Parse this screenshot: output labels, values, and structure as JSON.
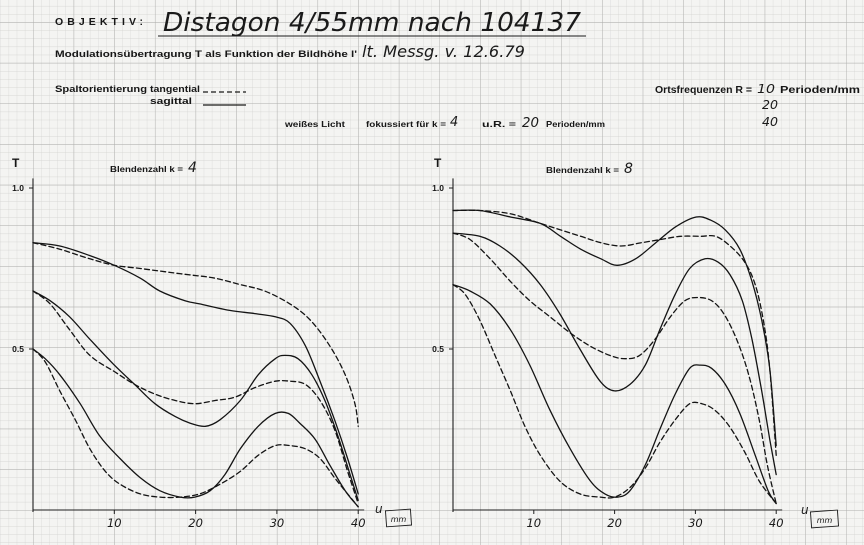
{
  "header": {
    "objektiv_label": "OBJEKTIV:",
    "lens": "Distagon 4/55mm nach 104137",
    "subtitle": "Modulationsübertragung T als Funktion der Bildhöhe l'",
    "measurement": "lt. Messg. v. 12.6.79"
  },
  "legend": {
    "prefix": "Spaltorientierung",
    "tangential": "tangential",
    "sagittal": "sagittal"
  },
  "frequencies": {
    "label": "Ortsfrequenzen R =",
    "values": [
      "10",
      "20",
      "40"
    ],
    "unit": "Perioden/mm"
  },
  "conditions": {
    "light": "weißes Licht",
    "focus_label": "fokussiert für k =",
    "focus_value": "4",
    "ur_label": "u.R. =",
    "ur_value": "20",
    "ur_unit": "Perioden/mm"
  },
  "chart_data": [
    {
      "type": "line",
      "title": "Blendenzahl k =",
      "aperture": "4",
      "ylabel": "T",
      "xlabel": "u",
      "xunit": "mm",
      "xlim": [
        0,
        40
      ],
      "ylim": [
        0,
        1
      ],
      "grid": true,
      "yticks": [
        {
          "value": 1.0,
          "label": "1.0"
        },
        {
          "value": 0.5,
          "label": "0.5"
        }
      ],
      "xticks": [
        {
          "value": 10,
          "label": "10"
        },
        {
          "value": 20,
          "label": "20"
        },
        {
          "value": 30,
          "label": "30"
        },
        {
          "value": 40,
          "label": "40"
        }
      ],
      "series": [
        {
          "tangential": true,
          "R": 10,
          "points": [
            [
              0,
              0.83
            ],
            [
              3.3,
              0.81
            ],
            [
              7,
              0.78
            ],
            [
              10,
              0.76
            ],
            [
              13.2,
              0.75
            ],
            [
              16.2,
              0.74
            ],
            [
              19.3,
              0.73
            ],
            [
              22.4,
              0.72
            ],
            [
              25.5,
              0.7
            ],
            [
              28.5,
              0.68
            ],
            [
              31.6,
              0.64
            ],
            [
              34.1,
              0.59
            ],
            [
              36.5,
              0.51
            ],
            [
              38.4,
              0.42
            ],
            [
              39.6,
              0.33
            ],
            [
              40,
              0.26
            ]
          ]
        },
        {
          "tangential": false,
          "R": 10,
          "points": [
            [
              0,
              0.83
            ],
            [
              3.3,
              0.82
            ],
            [
              7,
              0.79
            ],
            [
              10,
              0.76
            ],
            [
              13.2,
              0.72
            ],
            [
              15.6,
              0.68
            ],
            [
              18.7,
              0.65
            ],
            [
              20.5,
              0.64
            ],
            [
              24.2,
              0.62
            ],
            [
              27.3,
              0.61
            ],
            [
              29.8,
              0.6
            ],
            [
              31.6,
              0.58
            ],
            [
              33.5,
              0.51
            ],
            [
              35.3,
              0.4
            ],
            [
              37.1,
              0.28
            ],
            [
              38.7,
              0.16
            ],
            [
              40,
              0.05
            ]
          ]
        },
        {
          "tangential": true,
          "R": 20,
          "points": [
            [
              0,
              0.68
            ],
            [
              2.1,
              0.64
            ],
            [
              4.5,
              0.56
            ],
            [
              7,
              0.48
            ],
            [
              10,
              0.43
            ],
            [
              12.5,
              0.39
            ],
            [
              15,
              0.36
            ],
            [
              17.5,
              0.34
            ],
            [
              19.9,
              0.33
            ],
            [
              22.4,
              0.34
            ],
            [
              24.8,
              0.35
            ],
            [
              27.3,
              0.38
            ],
            [
              29.8,
              0.4
            ],
            [
              31.6,
              0.4
            ],
            [
              33.5,
              0.39
            ],
            [
              35.3,
              0.34
            ],
            [
              37.1,
              0.25
            ],
            [
              38.7,
              0.12
            ],
            [
              40,
              0.02
            ]
          ]
        },
        {
          "tangential": false,
          "R": 20,
          "points": [
            [
              0,
              0.68
            ],
            [
              2.1,
              0.65
            ],
            [
              4.5,
              0.6
            ],
            [
              7,
              0.53
            ],
            [
              10,
              0.45
            ],
            [
              12.5,
              0.39
            ],
            [
              15,
              0.33
            ],
            [
              17.5,
              0.29
            ],
            [
              19.3,
              0.27
            ],
            [
              21.2,
              0.26
            ],
            [
              23,
              0.28
            ],
            [
              25.5,
              0.34
            ],
            [
              27.7,
              0.42
            ],
            [
              29.8,
              0.47
            ],
            [
              31,
              0.48
            ],
            [
              32.6,
              0.47
            ],
            [
              34.3,
              0.42
            ],
            [
              35.9,
              0.34
            ],
            [
              37.5,
              0.23
            ],
            [
              39,
              0.11
            ],
            [
              40,
              0.03
            ]
          ]
        },
        {
          "tangential": true,
          "R": 40,
          "points": [
            [
              0,
              0.5
            ],
            [
              1.5,
              0.46
            ],
            [
              3.3,
              0.37
            ],
            [
              5.2,
              0.28
            ],
            [
              7,
              0.19
            ],
            [
              8.9,
              0.12
            ],
            [
              10.7,
              0.08
            ],
            [
              13.2,
              0.05
            ],
            [
              15.6,
              0.04
            ],
            [
              18.1,
              0.04
            ],
            [
              20.5,
              0.05
            ],
            [
              23,
              0.08
            ],
            [
              25.5,
              0.12
            ],
            [
              27.7,
              0.17
            ],
            [
              29.8,
              0.2
            ],
            [
              31.6,
              0.2
            ],
            [
              33.5,
              0.19
            ],
            [
              35.3,
              0.16
            ],
            [
              37.1,
              0.1
            ],
            [
              38.7,
              0.05
            ],
            [
              40,
              0.01
            ]
          ]
        },
        {
          "tangential": false,
          "R": 40,
          "points": [
            [
              0,
              0.5
            ],
            [
              1.5,
              0.47
            ],
            [
              3.3,
              0.42
            ],
            [
              5.8,
              0.33
            ],
            [
              8.2,
              0.23
            ],
            [
              10.7,
              0.16
            ],
            [
              13.2,
              0.1
            ],
            [
              15.6,
              0.06
            ],
            [
              18.1,
              0.04
            ],
            [
              19.9,
              0.04
            ],
            [
              21.8,
              0.06
            ],
            [
              23.6,
              0.11
            ],
            [
              25.5,
              0.19
            ],
            [
              27.7,
              0.26
            ],
            [
              29.8,
              0.3
            ],
            [
              31.4,
              0.3
            ],
            [
              32.8,
              0.27
            ],
            [
              34.7,
              0.22
            ],
            [
              36.5,
              0.14
            ],
            [
              38.4,
              0.06
            ],
            [
              40,
              0.01
            ]
          ]
        }
      ]
    },
    {
      "type": "line",
      "title": "Blendenzahl k =",
      "aperture": "8",
      "ylabel": "T",
      "xlabel": "u",
      "xunit": "mm",
      "xlim": [
        0,
        40
      ],
      "ylim": [
        0,
        1
      ],
      "grid": true,
      "yticks": [
        {
          "value": 1.0,
          "label": "1.0"
        },
        {
          "value": 0.5,
          "label": "0.5"
        }
      ],
      "xticks": [
        {
          "value": 10,
          "label": "10"
        },
        {
          "value": 20,
          "label": "20"
        },
        {
          "value": 30,
          "label": "30"
        },
        {
          "value": 40,
          "label": "40"
        }
      ],
      "series": [
        {
          "tangential": true,
          "R": 10,
          "points": [
            [
              0,
              0.93
            ],
            [
              3.3,
              0.93
            ],
            [
              7.1,
              0.92
            ],
            [
              10.8,
              0.89
            ],
            [
              13.3,
              0.87
            ],
            [
              15.8,
              0.85
            ],
            [
              18.3,
              0.83
            ],
            [
              20.8,
              0.82
            ],
            [
              23.3,
              0.83
            ],
            [
              25.7,
              0.84
            ],
            [
              28.2,
              0.85
            ],
            [
              30.7,
              0.85
            ],
            [
              32.5,
              0.85
            ],
            [
              34.3,
              0.82
            ],
            [
              36.1,
              0.77
            ],
            [
              37.4,
              0.7
            ],
            [
              38.4,
              0.59
            ],
            [
              39.2,
              0.44
            ],
            [
              40,
              0.17
            ]
          ]
        },
        {
          "tangential": false,
          "R": 10,
          "points": [
            [
              0,
              0.93
            ],
            [
              3.3,
              0.93
            ],
            [
              7.1,
              0.91
            ],
            [
              10.8,
              0.89
            ],
            [
              13.3,
              0.85
            ],
            [
              15.8,
              0.81
            ],
            [
              18.3,
              0.78
            ],
            [
              20.3,
              0.76
            ],
            [
              22.6,
              0.78
            ],
            [
              25.1,
              0.83
            ],
            [
              27.6,
              0.88
            ],
            [
              30.1,
              0.91
            ],
            [
              31.9,
              0.9
            ],
            [
              33.7,
              0.87
            ],
            [
              35.5,
              0.81
            ],
            [
              37,
              0.71
            ],
            [
              38.2,
              0.59
            ],
            [
              39.2,
              0.44
            ],
            [
              40,
              0.2
            ]
          ]
        },
        {
          "tangential": true,
          "R": 20,
          "points": [
            [
              0,
              0.86
            ],
            [
              2.1,
              0.84
            ],
            [
              4.6,
              0.78
            ],
            [
              7.1,
              0.71
            ],
            [
              9.5,
              0.65
            ],
            [
              12,
              0.6
            ],
            [
              14.5,
              0.55
            ],
            [
              16.9,
              0.51
            ],
            [
              19.4,
              0.48
            ],
            [
              21.3,
              0.47
            ],
            [
              23.1,
              0.48
            ],
            [
              25,
              0.53
            ],
            [
              26.9,
              0.6
            ],
            [
              28.7,
              0.65
            ],
            [
              30.3,
              0.66
            ],
            [
              32,
              0.65
            ],
            [
              33.5,
              0.61
            ],
            [
              35.1,
              0.53
            ],
            [
              36.6,
              0.42
            ],
            [
              37.9,
              0.28
            ],
            [
              38.9,
              0.14
            ],
            [
              40,
              0.02
            ]
          ]
        },
        {
          "tangential": false,
          "R": 20,
          "points": [
            [
              0,
              0.86
            ],
            [
              3.3,
              0.85
            ],
            [
              5.8,
              0.82
            ],
            [
              8.3,
              0.77
            ],
            [
              10.8,
              0.7
            ],
            [
              13.2,
              0.61
            ],
            [
              15.7,
              0.5
            ],
            [
              18.2,
              0.4
            ],
            [
              20,
              0.37
            ],
            [
              21.9,
              0.39
            ],
            [
              23.8,
              0.45
            ],
            [
              25.6,
              0.56
            ],
            [
              27.5,
              0.67
            ],
            [
              29.3,
              0.75
            ],
            [
              31.2,
              0.78
            ],
            [
              32.8,
              0.77
            ],
            [
              34.3,
              0.73
            ],
            [
              35.8,
              0.65
            ],
            [
              37,
              0.53
            ],
            [
              38.2,
              0.37
            ],
            [
              39.2,
              0.22
            ],
            [
              40,
              0.11
            ]
          ]
        },
        {
          "tangential": true,
          "R": 40,
          "points": [
            [
              0,
              0.7
            ],
            [
              1.5,
              0.67
            ],
            [
              3.3,
              0.59
            ],
            [
              5.2,
              0.48
            ],
            [
              7.1,
              0.37
            ],
            [
              8.9,
              0.26
            ],
            [
              10.8,
              0.17
            ],
            [
              13.2,
              0.09
            ],
            [
              15.7,
              0.05
            ],
            [
              18.2,
              0.04
            ],
            [
              20,
              0.04
            ],
            [
              21.9,
              0.07
            ],
            [
              23.8,
              0.13
            ],
            [
              25.6,
              0.21
            ],
            [
              27.5,
              0.28
            ],
            [
              29.3,
              0.33
            ],
            [
              30.8,
              0.33
            ],
            [
              32.4,
              0.31
            ],
            [
              34.2,
              0.26
            ],
            [
              36.1,
              0.18
            ],
            [
              37.9,
              0.09
            ],
            [
              40,
              0.02
            ]
          ]
        },
        {
          "tangential": false,
          "R": 40,
          "points": [
            [
              0,
              0.7
            ],
            [
              2.1,
              0.68
            ],
            [
              4.6,
              0.64
            ],
            [
              7.1,
              0.56
            ],
            [
              9.5,
              0.45
            ],
            [
              12,
              0.31
            ],
            [
              14.5,
              0.19
            ],
            [
              17,
              0.09
            ],
            [
              18.8,
              0.05
            ],
            [
              20.4,
              0.04
            ],
            [
              21.9,
              0.06
            ],
            [
              23.8,
              0.14
            ],
            [
              25.6,
              0.25
            ],
            [
              27.5,
              0.36
            ],
            [
              29.3,
              0.44
            ],
            [
              30.6,
              0.45
            ],
            [
              32,
              0.44
            ],
            [
              33.7,
              0.39
            ],
            [
              35.5,
              0.3
            ],
            [
              37.4,
              0.17
            ],
            [
              39,
              0.06
            ],
            [
              40,
              0.02
            ]
          ]
        }
      ]
    }
  ]
}
